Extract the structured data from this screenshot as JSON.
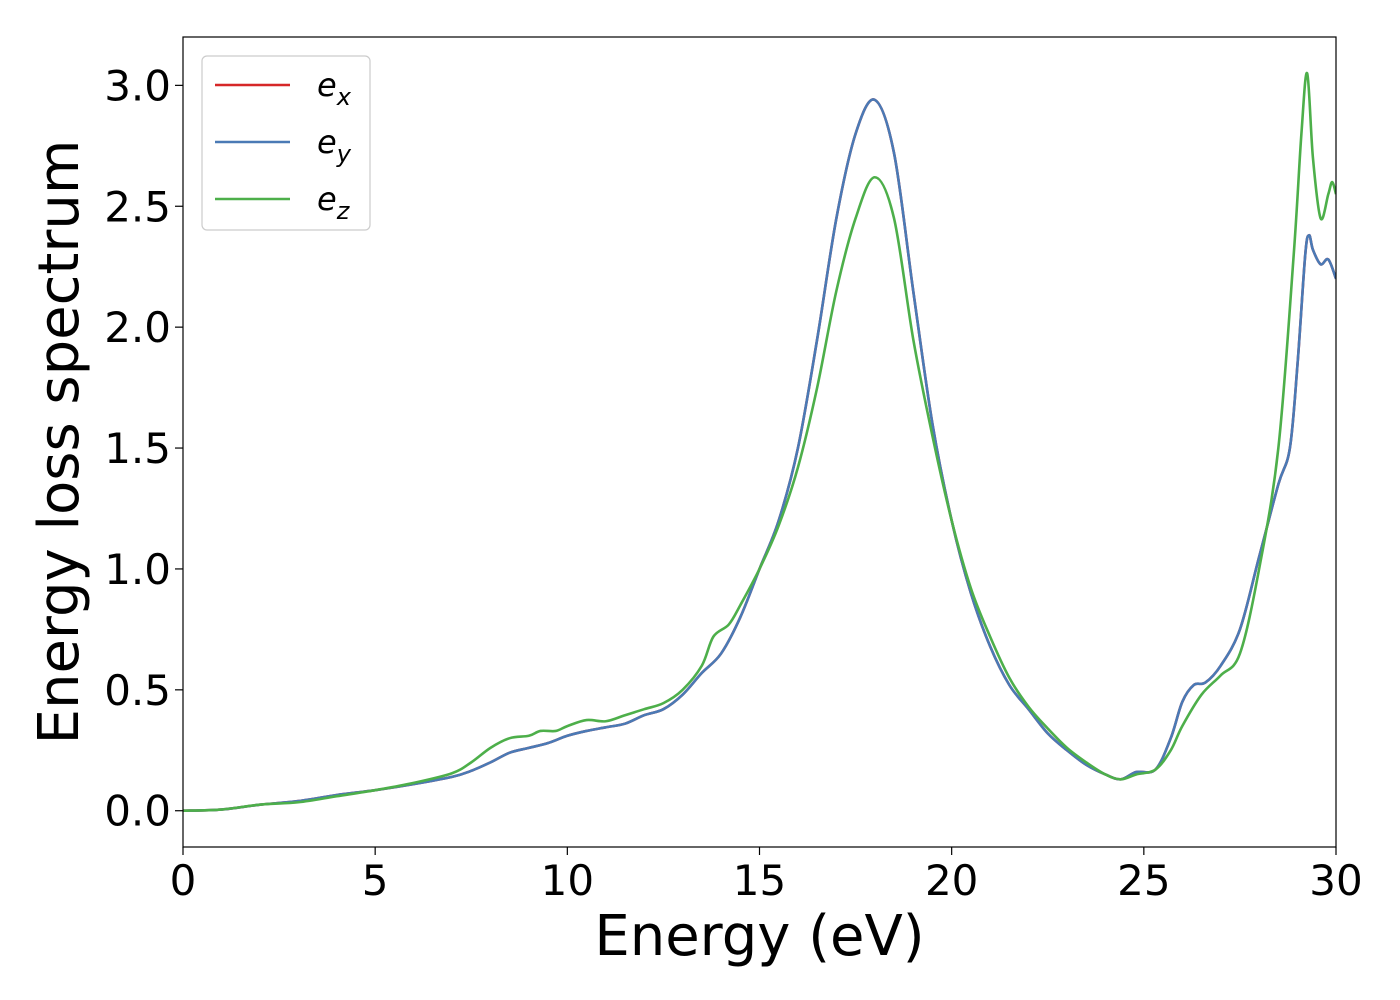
{
  "chart_data": {
    "type": "line",
    "xlabel": "Energy (eV)",
    "ylabel": "Energy loss spectrum",
    "xlim": [
      0,
      30
    ],
    "ylim": [
      -0.15,
      3.2
    ],
    "xticks": [
      0,
      5,
      10,
      15,
      20,
      25,
      30
    ],
    "xtick_labels": [
      "0",
      "5",
      "10",
      "15",
      "20",
      "25",
      "30"
    ],
    "yticks": [
      0.0,
      0.5,
      1.0,
      1.5,
      2.0,
      2.5,
      3.0
    ],
    "ytick_labels": [
      "0.0",
      "0.5",
      "1.0",
      "1.5",
      "2.0",
      "2.5",
      "3.0"
    ],
    "grid": false,
    "legend_position": "top-left",
    "series": [
      {
        "name": "e",
        "subscript": "x",
        "color": "#d62728",
        "x": [
          0,
          1,
          2,
          3,
          4,
          5,
          6,
          7,
          7.5,
          8,
          8.5,
          9,
          9.5,
          10,
          10.5,
          11,
          11.5,
          12,
          12.5,
          13,
          13.5,
          14,
          14.5,
          15,
          15.5,
          16,
          16.5,
          17,
          17.5,
          18,
          18.5,
          19,
          19.5,
          20,
          20.5,
          21,
          21.5,
          22,
          22.5,
          23,
          23.5,
          24,
          24.4,
          24.8,
          25.3,
          25.7,
          26,
          26.3,
          26.6,
          27,
          27.5,
          28,
          28.5,
          28.8,
          29,
          29.2,
          29.3,
          29.4,
          29.6,
          29.8,
          30
        ],
        "y": [
          0.0,
          0.005,
          0.025,
          0.04,
          0.065,
          0.085,
          0.11,
          0.14,
          0.165,
          0.2,
          0.24,
          0.26,
          0.28,
          0.31,
          0.33,
          0.345,
          0.36,
          0.395,
          0.42,
          0.48,
          0.57,
          0.65,
          0.8,
          1.0,
          1.2,
          1.5,
          1.95,
          2.45,
          2.8,
          2.94,
          2.72,
          2.15,
          1.6,
          1.2,
          0.9,
          0.68,
          0.52,
          0.42,
          0.32,
          0.25,
          0.19,
          0.15,
          0.13,
          0.16,
          0.17,
          0.3,
          0.45,
          0.52,
          0.53,
          0.6,
          0.75,
          1.05,
          1.35,
          1.5,
          1.85,
          2.3,
          2.38,
          2.32,
          2.26,
          2.28,
          2.2
        ]
      },
      {
        "name": "e",
        "subscript": "y",
        "color": "#4a7ab5",
        "x": [
          0,
          1,
          2,
          3,
          4,
          5,
          6,
          7,
          7.5,
          8,
          8.5,
          9,
          9.5,
          10,
          10.5,
          11,
          11.5,
          12,
          12.5,
          13,
          13.5,
          14,
          14.5,
          15,
          15.5,
          16,
          16.5,
          17,
          17.5,
          18,
          18.5,
          19,
          19.5,
          20,
          20.5,
          21,
          21.5,
          22,
          22.5,
          23,
          23.5,
          24,
          24.4,
          24.8,
          25.3,
          25.7,
          26,
          26.3,
          26.6,
          27,
          27.5,
          28,
          28.5,
          28.8,
          29,
          29.2,
          29.3,
          29.4,
          29.6,
          29.8,
          30
        ],
        "y": [
          0.0,
          0.005,
          0.025,
          0.04,
          0.065,
          0.085,
          0.11,
          0.14,
          0.165,
          0.2,
          0.24,
          0.26,
          0.28,
          0.31,
          0.33,
          0.345,
          0.36,
          0.395,
          0.42,
          0.48,
          0.57,
          0.65,
          0.8,
          1.0,
          1.2,
          1.5,
          1.95,
          2.45,
          2.8,
          2.94,
          2.72,
          2.15,
          1.6,
          1.2,
          0.9,
          0.68,
          0.52,
          0.42,
          0.32,
          0.25,
          0.19,
          0.15,
          0.13,
          0.16,
          0.17,
          0.3,
          0.45,
          0.52,
          0.53,
          0.6,
          0.75,
          1.05,
          1.35,
          1.5,
          1.85,
          2.3,
          2.38,
          2.32,
          2.26,
          2.28,
          2.2
        ]
      },
      {
        "name": "e",
        "subscript": "z",
        "color": "#4daf4a",
        "x": [
          0,
          1,
          2,
          3,
          4,
          5,
          6,
          7,
          7.5,
          8,
          8.5,
          9,
          9.3,
          9.7,
          10,
          10.5,
          11,
          11.5,
          12,
          12.5,
          13,
          13.5,
          13.8,
          14.2,
          14.5,
          15,
          15.5,
          16,
          16.5,
          17,
          17.5,
          18,
          18.5,
          19,
          19.5,
          20,
          20.5,
          21,
          21.5,
          22,
          22.5,
          23,
          23.5,
          24,
          24.4,
          24.8,
          25.3,
          25.7,
          26,
          26.5,
          27,
          27.5,
          28,
          28.5,
          28.9,
          29.1,
          29.25,
          29.4,
          29.6,
          29.8,
          29.9,
          30
        ],
        "y": [
          0.0,
          0.005,
          0.025,
          0.035,
          0.06,
          0.085,
          0.115,
          0.155,
          0.2,
          0.26,
          0.3,
          0.31,
          0.33,
          0.33,
          0.35,
          0.375,
          0.37,
          0.395,
          0.42,
          0.445,
          0.5,
          0.6,
          0.72,
          0.77,
          0.85,
          1.0,
          1.18,
          1.42,
          1.75,
          2.15,
          2.45,
          2.62,
          2.45,
          1.95,
          1.55,
          1.2,
          0.92,
          0.72,
          0.55,
          0.43,
          0.34,
          0.26,
          0.2,
          0.15,
          0.13,
          0.15,
          0.17,
          0.25,
          0.35,
          0.48,
          0.56,
          0.65,
          1.0,
          1.5,
          2.3,
          2.8,
          3.05,
          2.7,
          2.45,
          2.55,
          2.6,
          2.55
        ]
      }
    ]
  }
}
